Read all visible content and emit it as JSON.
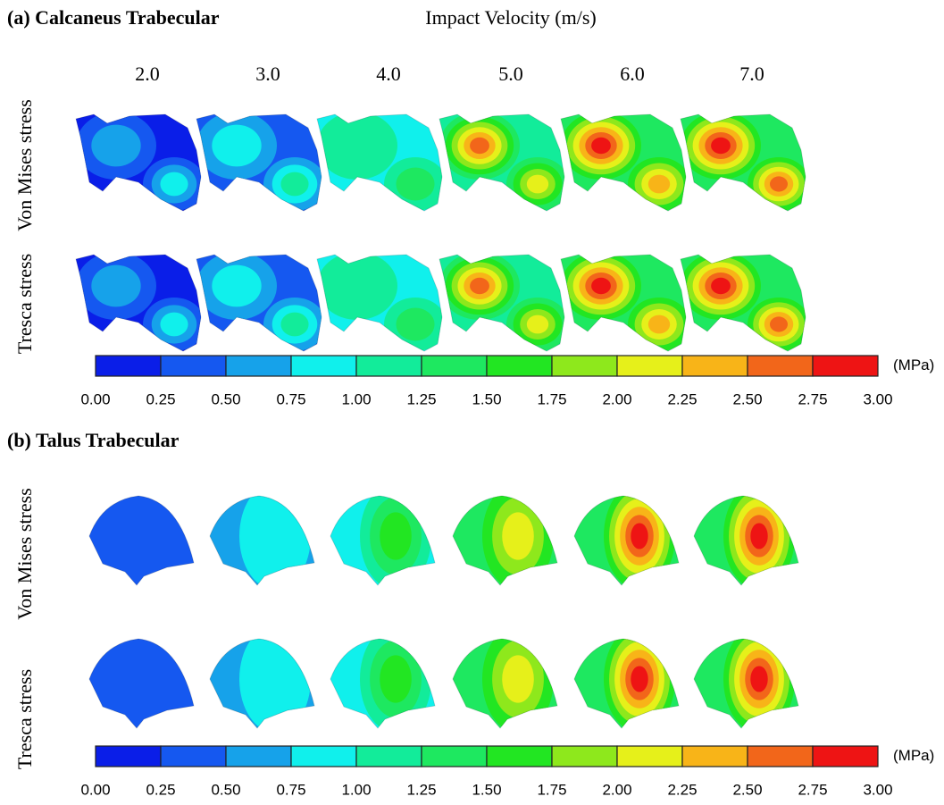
{
  "velocity_header": "Impact Velocity (m/s)",
  "velocities": [
    "2.0",
    "3.0",
    "4.0",
    "5.0",
    "6.0",
    "7.0"
  ],
  "colorbar": {
    "ticks": [
      "0.00",
      "0.25",
      "0.50",
      "0.75",
      "1.00",
      "1.25",
      "1.50",
      "1.75",
      "2.00",
      "2.25",
      "2.50",
      "2.75",
      "3.00"
    ],
    "unit": "(MPa)",
    "colors": [
      "#0a1ee8",
      "#1558f0",
      "#16a2ea",
      "#10f0ec",
      "#12ec9a",
      "#1ee860",
      "#22e622",
      "#8ee81c",
      "#e6f01a",
      "#f8b418",
      "#f2661a",
      "#ee1414"
    ]
  },
  "panels": [
    {
      "title": "(a) Calcaneus Trabecular",
      "row_labels": [
        "Von Mises stress",
        "Tresca stress"
      ]
    },
    {
      "title": "(b) Talus Trabecular",
      "row_labels": [
        "Von Mises stress",
        "Tresca stress"
      ]
    }
  ]
}
